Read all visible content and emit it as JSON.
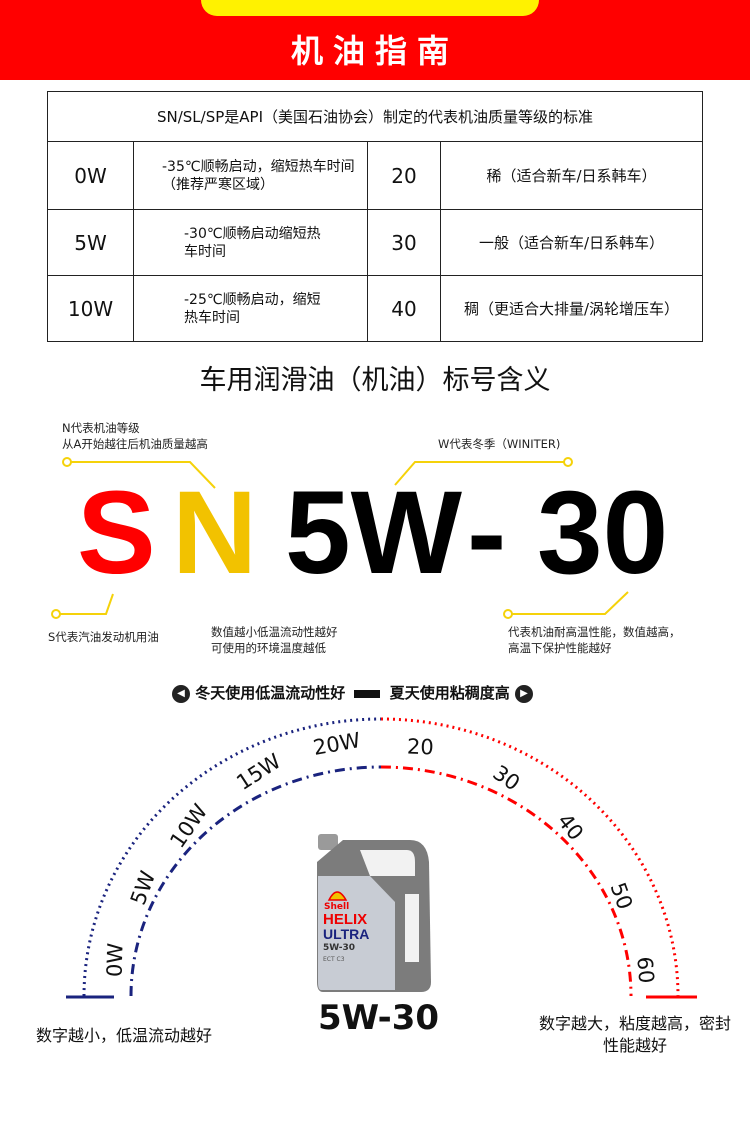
{
  "header": {
    "title": "机油指南"
  },
  "table": {
    "caption": "SN/SL/SP是API（美国石油协会）制定的代表机油质量等级的标准",
    "rows": [
      {
        "winter": "0W",
        "winter_desc": "-35℃顺畅启动，缩短热车时间（推荐严寒区域）",
        "hot": "20",
        "hot_desc": "稀（适合新车/日系韩车）"
      },
      {
        "winter": "5W",
        "winter_desc": "-30℃顺畅启动缩短热车时间",
        "hot": "30",
        "hot_desc": "一般（适合新车/日系韩车）"
      },
      {
        "winter": "10W",
        "winter_desc": "-25℃顺畅启动，缩短热车时间",
        "hot": "40",
        "hot_desc": "稠（更适合大排量/涡轮增压车）"
      }
    ]
  },
  "meaning": {
    "title": "车用润滑油（机油）标号含义",
    "letters": {
      "s": "S",
      "n": "N",
      "w": "5W",
      "dash": "-",
      "hot": "30"
    },
    "notes": {
      "n_line1": "N代表机油等级",
      "n_line2": "从A开始越往后机油质量越高",
      "w": "W代表冬季（WINITER)",
      "s": "S代表汽油发动机用油",
      "num_line1": "数值越小低温流动性越好",
      "num_line2": "可使用的环境温度越低",
      "hot_line1": "代表机油耐高温性能，数值越高，",
      "hot_line2": "高温下保护性能越好"
    },
    "colors": {
      "s": "#ff0000",
      "n": "#f2c200",
      "callout": "#f5d20a"
    }
  },
  "legend": {
    "left": "冬天使用低温流动性好",
    "right": "夏天使用粘稠度高"
  },
  "arc": {
    "winter_labels": [
      "0W",
      "5W",
      "10W",
      "15W",
      "20W"
    ],
    "hot_labels": [
      "20",
      "30",
      "40",
      "50",
      "60"
    ],
    "colors": {
      "winter": "#1a237e",
      "hot": "#ff0000"
    },
    "left_caption": "数字越小，低温流动越好",
    "right_caption_line1": "数字越大，粘度越高，密封",
    "right_caption_line2": "性能越好",
    "product_label": "5W-30",
    "product": {
      "brand": "Shell",
      "line1": "HELIX",
      "line2": "ULTRA",
      "grade": "5W-30",
      "spec": "ECT C3"
    }
  }
}
